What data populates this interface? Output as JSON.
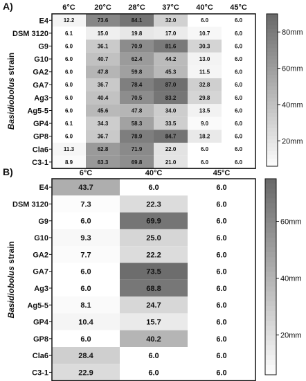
{
  "chart_data": [
    {
      "type": "heatmap",
      "panel_label": "A)",
      "y_axis_label_italic": "Basidiobolus",
      "y_axis_label_rest": " strain",
      "columns": [
        "6°C",
        "20°C",
        "28°C",
        "37°C",
        "40°C",
        "45°C"
      ],
      "rows": [
        "E4",
        "DSM 3120",
        "G9",
        "G10",
        "GA2",
        "GA7",
        "Ag3",
        "Ag5-5",
        "GP4",
        "GP8",
        "Cla6",
        "C3-1"
      ],
      "values": [
        [
          12.2,
          73.6,
          84.1,
          32.0,
          6.0,
          6.0
        ],
        [
          6.1,
          15.0,
          19.8,
          17.0,
          10.7,
          6.0
        ],
        [
          6.0,
          36.1,
          70.9,
          81.6,
          30.3,
          6.0
        ],
        [
          6.0,
          40.7,
          62.4,
          44.2,
          13.0,
          6.0
        ],
        [
          6.0,
          47.8,
          59.8,
          45.3,
          11.5,
          6.0
        ],
        [
          6.0,
          36.7,
          78.4,
          87.0,
          32.8,
          6.0
        ],
        [
          6.0,
          40.4,
          70.5,
          83.2,
          29.8,
          6.0
        ],
        [
          6.0,
          45.6,
          47.8,
          34.0,
          13.5,
          6.0
        ],
        [
          6.1,
          34.3,
          58.3,
          33.5,
          9.0,
          6.0
        ],
        [
          6.0,
          36.7,
          78.9,
          84.7,
          18.2,
          6.0
        ],
        [
          11.3,
          62.8,
          71.9,
          22.0,
          6.0,
          6.0
        ],
        [
          8.9,
          63.3,
          69.8,
          21.0,
          6.0,
          6.0
        ]
      ],
      "colorbar": {
        "ticks": [
          20,
          40,
          60,
          80
        ],
        "tick_labels": [
          "20mm",
          "40mm",
          "60mm",
          "80mm"
        ],
        "min": 6,
        "max": 90
      },
      "colors": {
        "low": "#ffffff",
        "high": "#6a6a6a"
      }
    },
    {
      "type": "heatmap",
      "panel_label": "B)",
      "y_axis_label_italic": "Basidiobolus",
      "y_axis_label_rest": " strain",
      "columns": [
        "6°C",
        "40°C",
        "45°C"
      ],
      "rows": [
        "E4",
        "DSM 3120",
        "G9",
        "G10",
        "GA2",
        "GA7",
        "Ag3",
        "Ag5-5",
        "GP4",
        "GP8",
        "Cla6",
        "C3-1"
      ],
      "values": [
        [
          43.7,
          6.0,
          6.0
        ],
        [
          7.3,
          22.3,
          6.0
        ],
        [
          6.0,
          69.9,
          6.0
        ],
        [
          9.3,
          25.0,
          6.0
        ],
        [
          7.7,
          22.2,
          6.0
        ],
        [
          6.0,
          73.5,
          6.0
        ],
        [
          6.0,
          68.8,
          6.0
        ],
        [
          8.1,
          24.7,
          6.0
        ],
        [
          10.4,
          15.7,
          6.0
        ],
        [
          6.0,
          40.2,
          6.0
        ],
        [
          28.4,
          6.0,
          6.0
        ],
        [
          22.9,
          6.0,
          6.0
        ]
      ],
      "colorbar": {
        "ticks": [
          20,
          40,
          60
        ],
        "tick_labels": [
          "20mm",
          "40mm",
          "60mm"
        ],
        "min": 6,
        "max": 75
      },
      "colors": {
        "low": "#ffffff",
        "high": "#6a6a6a"
      }
    }
  ]
}
